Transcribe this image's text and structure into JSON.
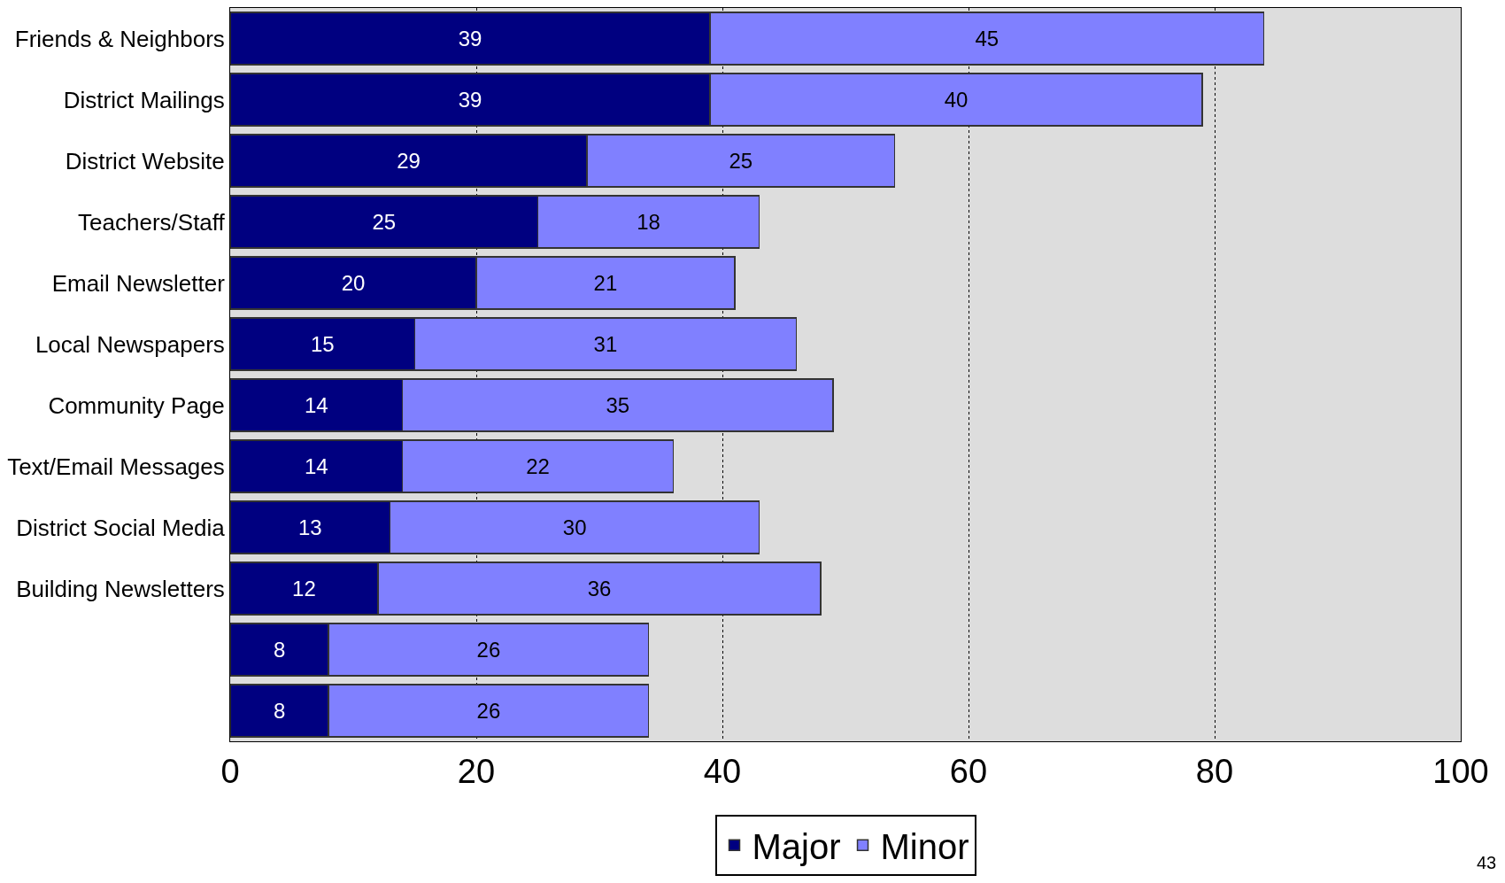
{
  "chart_data": {
    "type": "bar",
    "orientation": "horizontal",
    "stacked": true,
    "categories": [
      "Friends & Neighbors",
      "District Mailings",
      "District Website",
      "Teachers/Staff",
      "Email Newsletter",
      "Local Newspapers",
      "Community Page",
      "Text/Email Messages",
      "District Social Media",
      "Building Newsletters",
      null,
      null
    ],
    "series": [
      {
        "name": "Major",
        "color": "#000080",
        "values": [
          39,
          39,
          29,
          25,
          20,
          15,
          14,
          14,
          13,
          12,
          8,
          8
        ]
      },
      {
        "name": "Minor",
        "color": "#8080ff",
        "values": [
          45,
          40,
          25,
          18,
          21,
          31,
          35,
          22,
          30,
          36,
          26,
          26
        ]
      }
    ],
    "xlim": [
      0,
      100
    ],
    "xticks": [
      0,
      20,
      40,
      60,
      80,
      100
    ],
    "grid": "x",
    "legend": "bottom",
    "data_labels": true,
    "annotations": [
      "43"
    ]
  }
}
